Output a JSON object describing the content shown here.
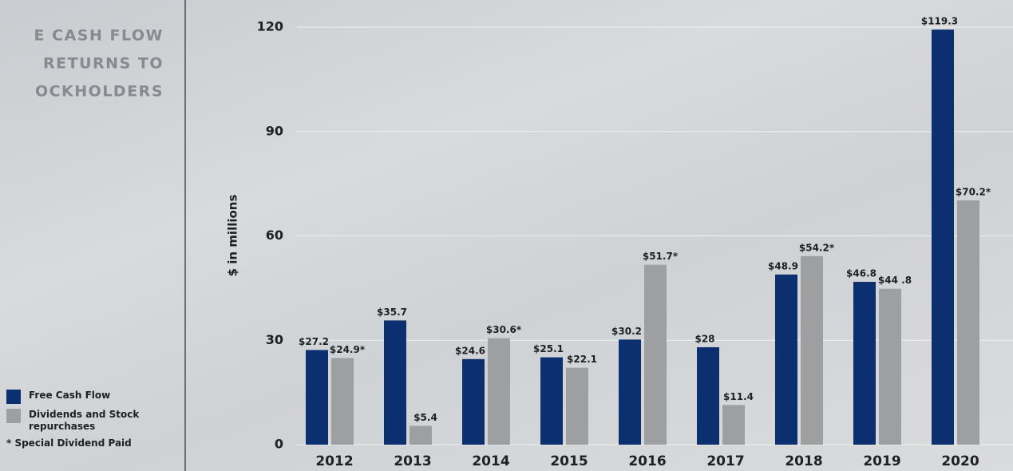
{
  "chart_data": {
    "type": "bar",
    "title_lines": [
      "E CASH FLOW",
      "RETURNS TO",
      "OCKHOLDERS"
    ],
    "y_label": "$ in millions",
    "categories": [
      "2012",
      "2013",
      "2014",
      "2015",
      "2016",
      "2017",
      "2018",
      "2019",
      "2020"
    ],
    "series": [
      {
        "name": "Free Cash Flow",
        "color": "#0c2f6f",
        "values": [
          27.2,
          35.7,
          24.6,
          25.1,
          30.2,
          28,
          48.9,
          46.8,
          119.3
        ],
        "value_labels": [
          "$27.2",
          "$35.7",
          "$24.6",
          "$25.1",
          "$30.2",
          "$28",
          "$48.9",
          "$46.8",
          "$119.3"
        ]
      },
      {
        "name": "Dividends and Stock repurchases",
        "color": "#9e9fa1",
        "values": [
          24.9,
          5.4,
          30.6,
          22.1,
          51.7,
          11.4,
          54.2,
          44.8,
          70.2
        ],
        "value_labels": [
          "$24.9*",
          "$5.4",
          "$30.6*",
          "$22.1",
          "$51.7*",
          "$11.4",
          "$54.2*",
          "$44 .8",
          "$70.2*"
        ]
      }
    ],
    "footnote": "* Special Dividend Paid",
    "ylim": [
      0,
      120
    ],
    "yticks": [
      0,
      30,
      60,
      90,
      120
    ],
    "grid": true
  }
}
